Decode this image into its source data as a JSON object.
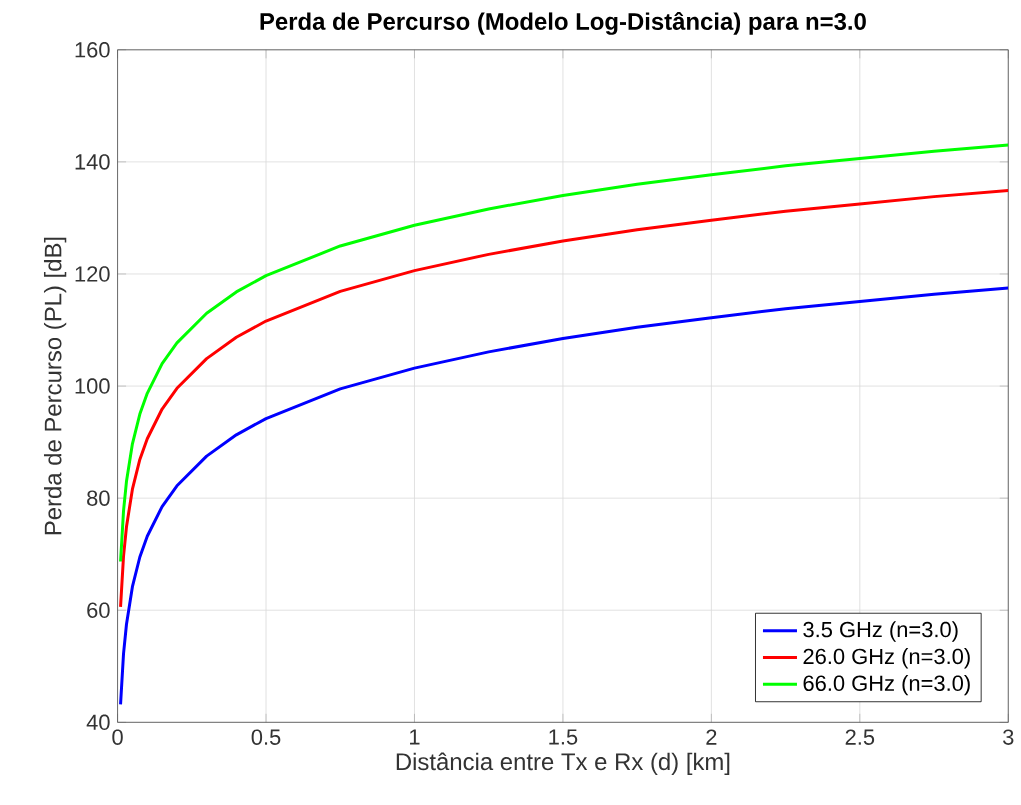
{
  "chart_data": {
    "type": "line",
    "title": "Perda de Percurso (Modelo Log-Distância) para n=3.0",
    "xlabel": "Distância entre Tx e Rx (d) [km]",
    "ylabel": "Perda de Percurso (PL) [dB]",
    "x": [
      0.01,
      0.02,
      0.03,
      0.05,
      0.075,
      0.1,
      0.15,
      0.2,
      0.3,
      0.4,
      0.5,
      0.75,
      1,
      1.25,
      1.5,
      1.75,
      2,
      2.25,
      2.5,
      2.75,
      3
    ],
    "series": [
      {
        "name": "3.5 GHz (n=3.0)",
        "color": "#0000ff",
        "values": [
          43.2,
          52.2,
          57.5,
          64.2,
          69.5,
          73.2,
          78.5,
          82.2,
          87.5,
          91.3,
          94.2,
          99.5,
          103.2,
          106.1,
          108.5,
          110.5,
          112.2,
          113.8,
          115.1,
          116.4,
          117.5
        ]
      },
      {
        "name": "26.0 GHz (n=3.0)",
        "color": "#ff0000",
        "values": [
          60.6,
          69.6,
          74.9,
          81.6,
          86.9,
          90.6,
          95.9,
          99.6,
          104.9,
          108.7,
          111.6,
          116.9,
          120.6,
          123.5,
          125.9,
          127.9,
          129.6,
          131.2,
          132.5,
          133.8,
          134.9
        ]
      },
      {
        "name": "66.0 GHz (n=3.0)",
        "color": "#00ff00",
        "values": [
          68.7,
          77.7,
          83.0,
          89.7,
          95.0,
          98.7,
          104.0,
          107.7,
          113.0,
          116.8,
          119.7,
          125.0,
          128.7,
          131.6,
          134.0,
          136.0,
          137.7,
          139.3,
          140.6,
          141.9,
          143.0
        ]
      }
    ],
    "xlim": [
      0,
      3
    ],
    "ylim": [
      40,
      160
    ],
    "xticks": [
      0,
      0.5,
      1,
      1.5,
      2,
      2.5,
      3
    ],
    "yticks": [
      40,
      60,
      80,
      100,
      120,
      140,
      160
    ],
    "grid": true,
    "legend": "bottom right",
    "marker": "none",
    "line_style": "solid"
  }
}
